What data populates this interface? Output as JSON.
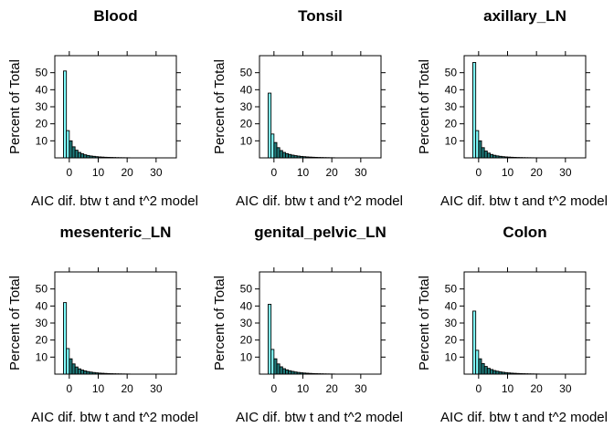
{
  "chart_data": {
    "type": "bar",
    "xlabel": "AIC dif. btw t and t^2 model",
    "ylabel": "Percent of Total",
    "xlim": [
      -5,
      37
    ],
    "ylim": [
      0,
      60
    ],
    "xticks": [
      0,
      10,
      20,
      30
    ],
    "yticks": [
      10,
      20,
      30,
      40,
      50
    ],
    "bin_width": 1,
    "bin_starts": [
      -2,
      -1,
      0,
      1,
      2,
      3,
      4,
      5,
      6,
      7,
      8,
      9,
      10,
      11,
      12,
      13,
      14,
      15,
      16,
      17,
      18,
      19,
      20
    ],
    "colors": {
      "fill_light": "#80ffff",
      "fill_dense": "#1f7a7a",
      "edge": "#000000",
      "axis": "#000000"
    },
    "panels": [
      {
        "title": "Blood",
        "values": [
          51,
          16,
          10,
          6.5,
          4.5,
          3.2,
          2.4,
          1.8,
          1.4,
          1.1,
          0.9,
          0.7,
          0.55,
          0.45,
          0.35,
          0.3,
          0.25,
          0.2,
          0.15,
          0.12,
          0.1,
          0.08,
          0.06
        ]
      },
      {
        "title": "Tonsil",
        "values": [
          38,
          14,
          9,
          6,
          4.3,
          3.2,
          2.5,
          2,
          1.6,
          1.3,
          1.05,
          0.85,
          0.7,
          0.55,
          0.45,
          0.37,
          0.3,
          0.24,
          0.2,
          0.16,
          0.13,
          0.1,
          0.08
        ]
      },
      {
        "title": "axillary_LN",
        "values": [
          56,
          16,
          10,
          6,
          4,
          2.8,
          2,
          1.5,
          1.15,
          0.9,
          0.7,
          0.55,
          0.45,
          0.35,
          0.28,
          0.22,
          0.18,
          0.14,
          0.11,
          0.09,
          0.07,
          0.05,
          0.04
        ]
      },
      {
        "title": "mesenteric_LN",
        "values": [
          42,
          15,
          9,
          6,
          4.2,
          3.1,
          2.4,
          1.9,
          1.5,
          1.2,
          0.95,
          0.75,
          0.6,
          0.5,
          0.4,
          0.32,
          0.26,
          0.21,
          0.17,
          0.14,
          0.11,
          0.09,
          0.07
        ]
      },
      {
        "title": "genital_pelvic_LN",
        "values": [
          41,
          14.5,
          9,
          6,
          4.3,
          3.2,
          2.5,
          2,
          1.6,
          1.25,
          1,
          0.8,
          0.65,
          0.52,
          0.42,
          0.34,
          0.27,
          0.22,
          0.18,
          0.14,
          0.11,
          0.09,
          0.07
        ]
      },
      {
        "title": "Colon",
        "values": [
          37,
          14,
          9,
          6.2,
          4.5,
          3.4,
          2.7,
          2.1,
          1.7,
          1.35,
          1.1,
          0.9,
          0.72,
          0.58,
          0.47,
          0.38,
          0.31,
          0.25,
          0.2,
          0.16,
          0.13,
          0.1,
          0.08
        ]
      }
    ]
  }
}
